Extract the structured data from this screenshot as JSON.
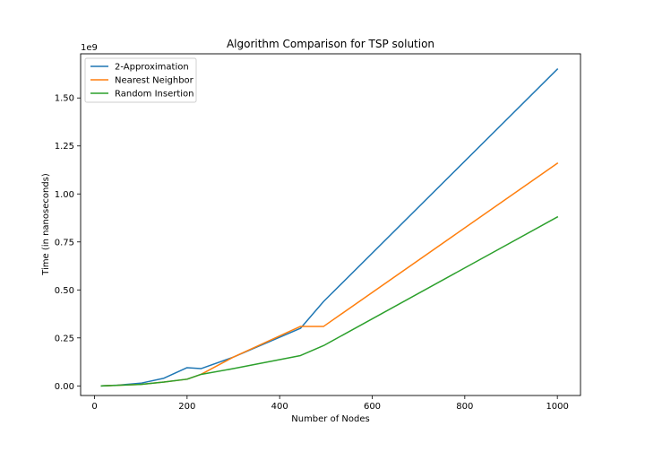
{
  "chart_data": {
    "type": "line",
    "title": "Algorithm Comparison for TSP solution",
    "xlabel": "Number of Nodes",
    "ylabel": "Time (in nanoseconds)",
    "y_scale_label": "1e9",
    "xlim": [
      -30,
      1050
    ],
    "ylim": [
      -0.05,
      1.73
    ],
    "x_ticks": [
      0,
      200,
      400,
      600,
      800,
      1000
    ],
    "y_ticks": [
      0.0,
      0.25,
      0.5,
      0.75,
      1.0,
      1.25,
      1.5
    ],
    "y_tick_labels": [
      "0.00",
      "0.25",
      "0.50",
      "0.75",
      "1.00",
      "1.25",
      "1.50"
    ],
    "grid": false,
    "legend_position": "top-left",
    "series": [
      {
        "name": "2-Approximation",
        "color": "#1f77b4",
        "x": [
          15,
          50,
          100,
          150,
          200,
          230,
          300,
          445,
          495,
          1000
        ],
        "y": [
          0.0,
          0.004,
          0.014,
          0.04,
          0.095,
          0.09,
          0.15,
          0.3,
          0.44,
          1.65
        ]
      },
      {
        "name": "Nearest Neighbor",
        "color": "#ff7f0e",
        "x": [
          15,
          50,
          100,
          150,
          200,
          230,
          300,
          445,
          495,
          1000
        ],
        "y": [
          0.0,
          0.003,
          0.008,
          0.02,
          0.035,
          0.06,
          0.15,
          0.31,
          0.31,
          1.16
        ]
      },
      {
        "name": "Random Insertion",
        "color": "#2ca02c",
        "x": [
          15,
          50,
          100,
          150,
          200,
          230,
          300,
          445,
          495,
          1000
        ],
        "y": [
          0.0,
          0.003,
          0.008,
          0.02,
          0.035,
          0.06,
          0.09,
          0.158,
          0.21,
          0.88
        ]
      }
    ]
  }
}
